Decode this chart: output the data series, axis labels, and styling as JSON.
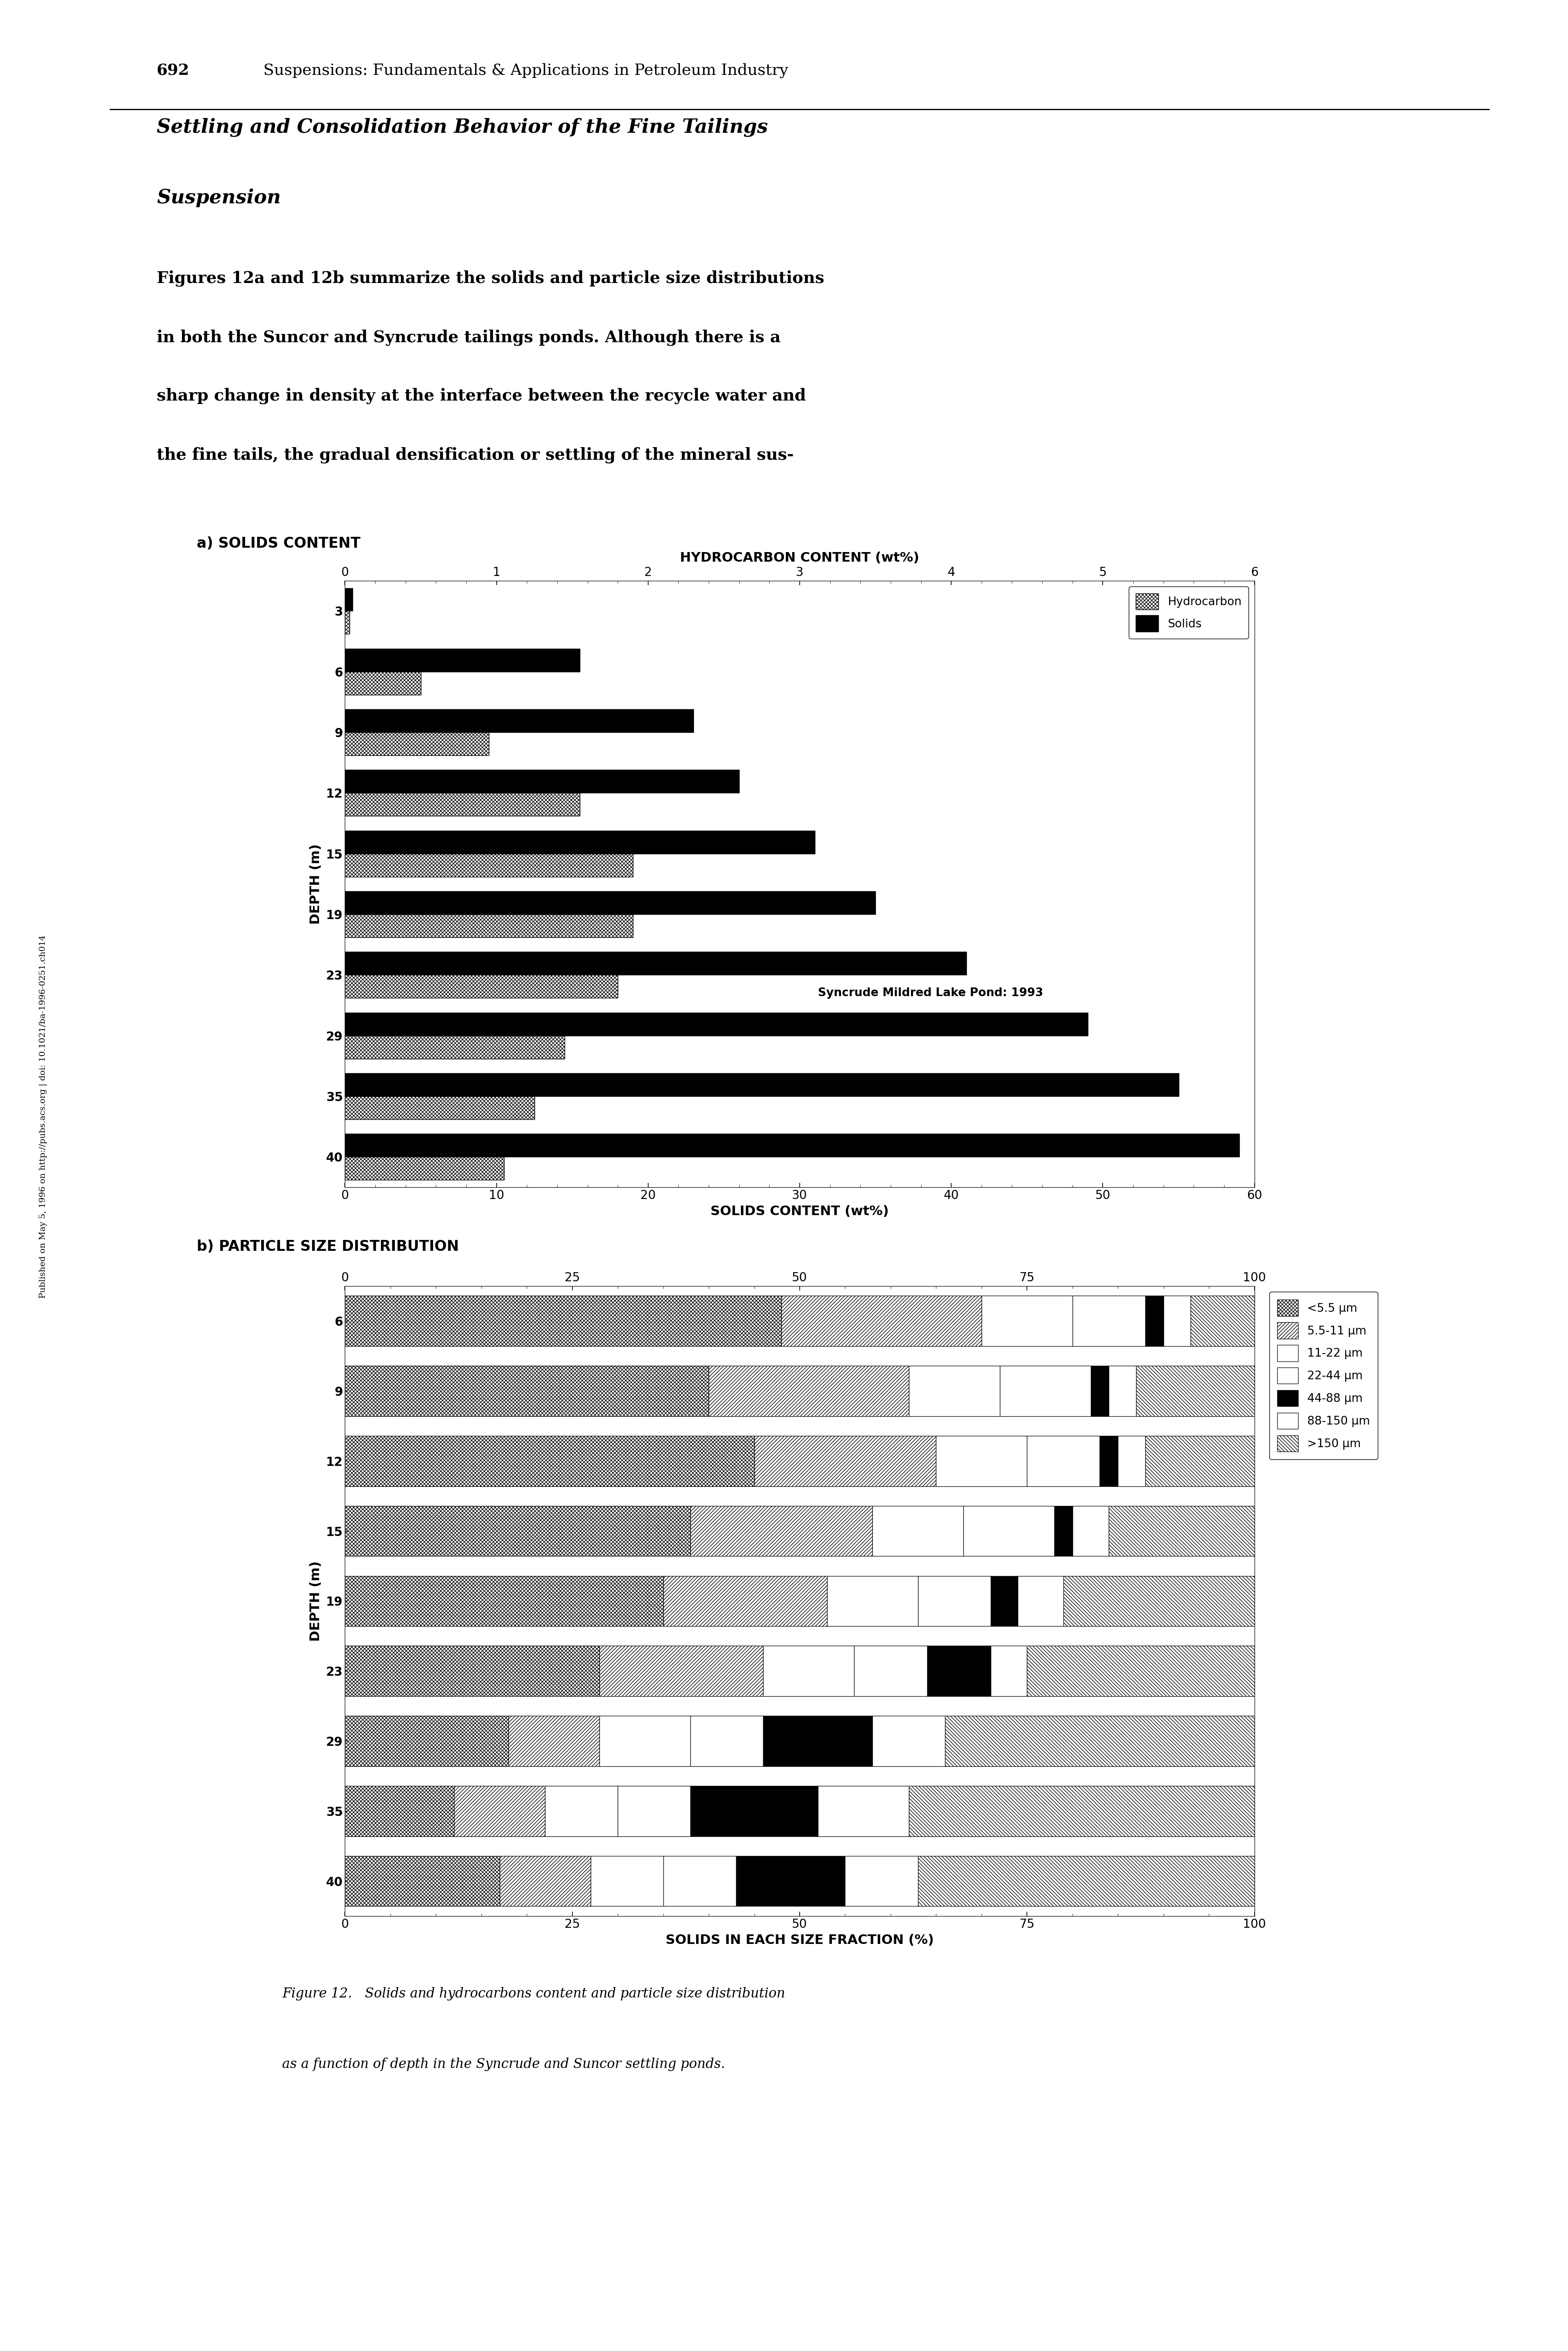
{
  "page_header_num": "692",
  "page_header_title": "Suspensions: Fundamentals & Applications in Petroleum Industry",
  "section_title_line1": "Settling and Consolidation Behavior of the Fine Tailings",
  "section_title_line2": "Suspension",
  "body_text_lines": [
    "Figures 12a and 12b summarize the solids and particle size distributions",
    "in both the Suncor and Syncrude tailings ponds. Although there is a",
    "sharp change in density at the interface between the recycle water and",
    "the fine tails, the gradual densification or settling of the mineral sus-"
  ],
  "chart_a_title": "a) SOLIDS CONTENT",
  "chart_a_top_xlabel": "HYDROCARBON CONTENT (wt%)",
  "chart_a_top_xticks": [
    0,
    1,
    2,
    3,
    4,
    5,
    6
  ],
  "chart_a_bottom_xlabel": "SOLIDS CONTENT (wt%)",
  "chart_a_bottom_xticks": [
    0,
    10,
    20,
    30,
    40,
    50,
    60
  ],
  "chart_a_ylabel": "DEPTH (m)",
  "chart_a_depths": [
    3,
    6,
    9,
    12,
    15,
    19,
    23,
    29,
    35,
    40
  ],
  "chart_a_hydrocarbon": [
    0.3,
    5.0,
    9.5,
    15.5,
    19.0,
    19.0,
    18.0,
    14.5,
    12.5,
    10.5
  ],
  "chart_a_solids": [
    0.5,
    15.5,
    23.0,
    26.0,
    31.0,
    35.0,
    41.0,
    49.0,
    55.0,
    59.0
  ],
  "chart_a_annotation": "Syncrude Mildred Lake Pond: 1993",
  "chart_a_legend_hydrocarbon": "Hydrocarbon",
  "chart_a_legend_solids": "Solids",
  "chart_b_title": "b) PARTICLE SIZE DISTRIBUTION",
  "chart_b_xlabel": "SOLIDS IN EACH SIZE FRACTION (%)",
  "chart_b_xticks": [
    0,
    25,
    50,
    75,
    100
  ],
  "chart_b_ylabel": "DEPTH (m)",
  "chart_b_depths": [
    6,
    9,
    12,
    15,
    19,
    23,
    29,
    35,
    40
  ],
  "chart_b_fractions": {
    "<5.5um": [
      48,
      40,
      45,
      38,
      35,
      28,
      18,
      12,
      17
    ],
    "5.5-11um": [
      22,
      22,
      20,
      20,
      18,
      18,
      10,
      10,
      10
    ],
    "11-22um": [
      10,
      10,
      10,
      10,
      10,
      10,
      10,
      8,
      8
    ],
    "22-44um": [
      8,
      10,
      8,
      10,
      8,
      8,
      8,
      8,
      8
    ],
    "44-88um": [
      2,
      2,
      2,
      2,
      3,
      7,
      12,
      14,
      12
    ],
    "88-150um": [
      3,
      3,
      3,
      4,
      5,
      4,
      8,
      10,
      8
    ],
    ">150um": [
      7,
      13,
      12,
      16,
      21,
      25,
      34,
      38,
      37
    ]
  },
  "chart_b_legend_labels": [
    "<5.5 μm",
    "5.5-11 μm",
    "11-22 μm",
    "22-44 μm",
    "44-88 μm",
    "88-150 μm",
    ">150 μm"
  ],
  "figure_caption_line1": "Figure 12.   Solids and hydrocarbons content and particle size distribution",
  "figure_caption_line2": "as a function of depth in the Syncrude and Suncor settling ponds.",
  "sidebar_text": "Published on May 5, 1996 on http://pubs.acs.org | doi: 10.1021/ba-1996-0251.ch014"
}
